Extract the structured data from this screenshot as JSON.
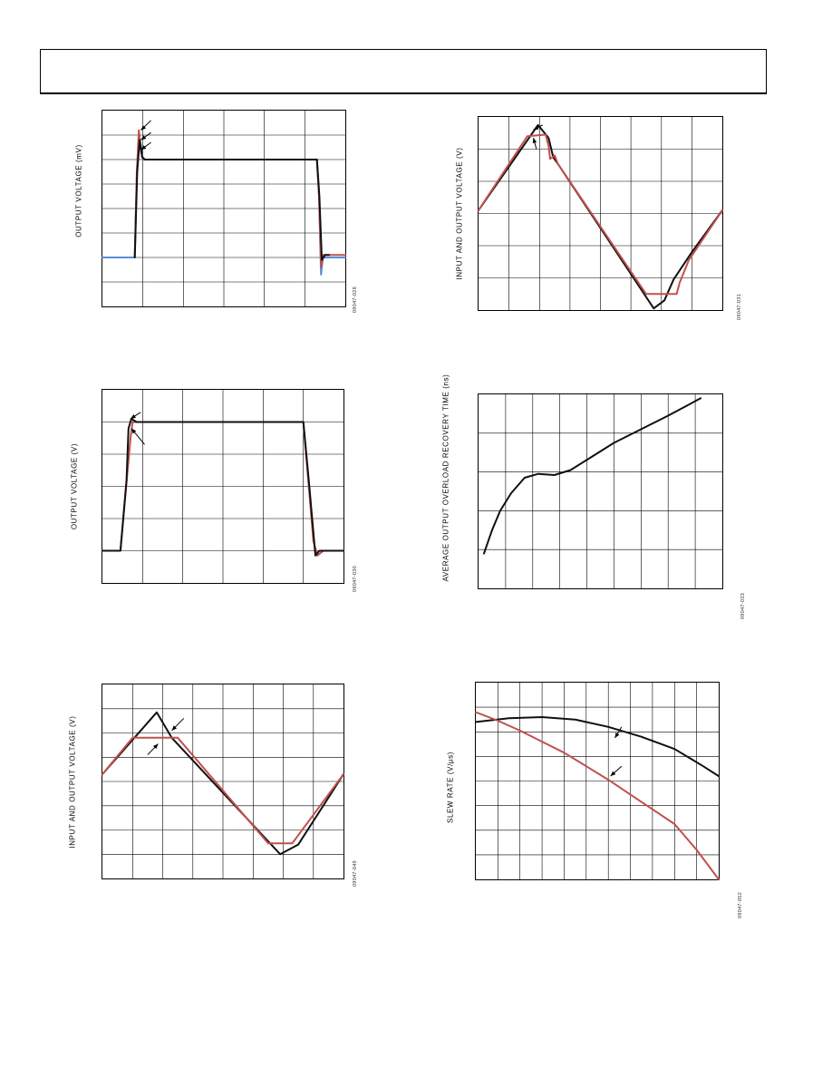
{
  "page": {
    "header": ""
  },
  "colors": {
    "black": "#111111",
    "red": "#c0504d",
    "blue": "#5b8dd9",
    "grid": "#000000"
  },
  "charts": [
    {
      "id": "c1",
      "ylabel": "OUTPUT VOLTAGE (mV)",
      "figid": "09047-028",
      "chart_data": {
        "type": "line",
        "xlim": [
          0,
          6
        ],
        "ylim": [
          0,
          8
        ],
        "grid": {
          "x": 6,
          "y": 8
        },
        "series": [
          {
            "color": "blue",
            "points": [
              [
                0,
                2
              ],
              [
                0.8,
                2
              ],
              [
                0.85,
                5.5
              ],
              [
                0.9,
                7
              ],
              [
                0.95,
                6.6
              ],
              [
                1,
                6
              ],
              [
                5.3,
                6
              ],
              [
                5.35,
                4.5
              ],
              [
                5.4,
                1.3
              ],
              [
                5.45,
                2
              ],
              [
                6,
                2
              ]
            ]
          },
          {
            "color": "red",
            "points": [
              [
                0.8,
                2
              ],
              [
                0.85,
                5.5
              ],
              [
                0.9,
                7.2
              ],
              [
                0.95,
                6.4
              ],
              [
                1,
                6
              ],
              [
                5.3,
                6
              ],
              [
                5.35,
                4.5
              ],
              [
                5.4,
                1.6
              ],
              [
                5.45,
                2.1
              ],
              [
                6,
                2.1
              ]
            ]
          },
          {
            "color": "black",
            "points": [
              [
                0.8,
                2
              ],
              [
                0.86,
                5.5
              ],
              [
                0.92,
                6.8
              ],
              [
                0.98,
                6.1
              ],
              [
                1.05,
                6
              ],
              [
                5.3,
                6
              ],
              [
                5.36,
                4.5
              ],
              [
                5.42,
                1.9
              ],
              [
                5.5,
                2.1
              ],
              [
                5.6,
                2.1
              ]
            ]
          }
        ],
        "arrows": [
          [
            [
              1.2,
              7.6
            ],
            [
              0.95,
              7.2
            ]
          ],
          [
            [
              1.2,
              7.1
            ],
            [
              0.95,
              6.8
            ]
          ],
          [
            [
              1.2,
              6.7
            ],
            [
              0.95,
              6.4
            ]
          ]
        ]
      }
    },
    {
      "id": "c2",
      "ylabel": "INPUT AND OUTPUT VOLTAGE (V)",
      "figid": "09047-031",
      "chart_data": {
        "type": "line",
        "xlim": [
          0,
          8
        ],
        "ylim": [
          0,
          6
        ],
        "grid": {
          "x": 8,
          "y": 6
        },
        "series": [
          {
            "color": "black",
            "points": [
              [
                0,
                3.1
              ],
              [
                1.95,
                5.75
              ],
              [
                2.3,
                5.35
              ],
              [
                2.45,
                4.75
              ],
              [
                2.6,
                4.55
              ],
              [
                5.75,
                0.05
              ],
              [
                6.1,
                0.3
              ],
              [
                6.4,
                0.95
              ],
              [
                7,
                1.8
              ],
              [
                8,
                3.1
              ]
            ]
          },
          {
            "color": "red",
            "points": [
              [
                0,
                3.1
              ],
              [
                1.6,
                5.4
              ],
              [
                2.2,
                5.45
              ],
              [
                2.3,
                5.1
              ],
              [
                2.35,
                4.7
              ],
              [
                2.5,
                4.8
              ],
              [
                2.6,
                4.55
              ],
              [
                5.5,
                0.5
              ],
              [
                6.5,
                0.5
              ],
              [
                6.6,
                0.85
              ],
              [
                6.9,
                1.55
              ],
              [
                8,
                3.1
              ]
            ]
          }
        ],
        "arrows": [
          [
            [
              2.1,
              5.75
            ],
            [
              1.8,
              5.6
            ]
          ],
          [
            [
              1.9,
              5.0
            ],
            [
              1.8,
              5.35
            ]
          ]
        ]
      }
    },
    {
      "id": "c3",
      "ylabel": "OUTPUT VOLTAGE (V)",
      "figid": "09047-030",
      "chart_data": {
        "type": "line",
        "xlim": [
          0,
          6
        ],
        "ylim": [
          0,
          6
        ],
        "grid": {
          "x": 6,
          "y": 6
        },
        "series": [
          {
            "color": "red",
            "points": [
              [
                0,
                1
              ],
              [
                0.45,
                1
              ],
              [
                0.7,
                4.5
              ],
              [
                0.75,
                5
              ],
              [
                0.85,
                5
              ],
              [
                5,
                5
              ],
              [
                5.25,
                1.3
              ],
              [
                5.35,
                0.85
              ],
              [
                5.5,
                1
              ],
              [
                6,
                1
              ]
            ]
          },
          {
            "color": "black",
            "points": [
              [
                0,
                1
              ],
              [
                0.45,
                1
              ],
              [
                0.6,
                3.2
              ],
              [
                0.65,
                4.8
              ],
              [
                0.72,
                5.1
              ],
              [
                0.85,
                5
              ],
              [
                5,
                5
              ],
              [
                5.15,
                3
              ],
              [
                5.3,
                0.85
              ],
              [
                5.4,
                1
              ],
              [
                6,
                1
              ]
            ]
          }
        ],
        "arrows": [
          [
            [
              0.95,
              5.3
            ],
            [
              0.7,
              5.1
            ]
          ],
          [
            [
              1.05,
              4.3
            ],
            [
              0.72,
              4.8
            ]
          ]
        ]
      }
    },
    {
      "id": "c4",
      "ylabel": "AVERAGE OUTPUT OVERLOAD RECOVERY TIME (ns)",
      "figid": "09047-033",
      "chart_data": {
        "type": "line",
        "xlim": [
          0,
          9
        ],
        "ylim": [
          0,
          5
        ],
        "grid": {
          "x": 9,
          "y": 5
        },
        "series": [
          {
            "color": "black",
            "points": [
              [
                0.2,
                0.9
              ],
              [
                0.5,
                1.5
              ],
              [
                0.8,
                2
              ],
              [
                1.2,
                2.45
              ],
              [
                1.7,
                2.85
              ],
              [
                2.2,
                2.95
              ],
              [
                2.8,
                2.92
              ],
              [
                3.4,
                3.05
              ],
              [
                4.2,
                3.4
              ],
              [
                5,
                3.75
              ],
              [
                6,
                4.1
              ],
              [
                7,
                4.45
              ],
              [
                8.2,
                4.9
              ]
            ]
          }
        ]
      }
    },
    {
      "id": "c5",
      "ylabel": "INPUT AND OUTPUT VOLTAGE (V)",
      "figid": "09047-049",
      "chart_data": {
        "type": "line",
        "xlim": [
          0,
          8
        ],
        "ylim": [
          0,
          8
        ],
        "grid": {
          "x": 8,
          "y": 8
        },
        "series": [
          {
            "color": "black",
            "points": [
              [
                0,
                4.3
              ],
              [
                1.8,
                6.85
              ],
              [
                2.3,
                5.8
              ],
              [
                5.9,
                1.0
              ],
              [
                6.5,
                1.4
              ],
              [
                8,
                4.3
              ]
            ]
          },
          {
            "color": "red",
            "points": [
              [
                0,
                4.3
              ],
              [
                1.0,
                5.8
              ],
              [
                2.5,
                5.8
              ],
              [
                5.5,
                1.45
              ],
              [
                6.3,
                1.45
              ],
              [
                8,
                4.3
              ]
            ]
          }
        ],
        "arrows": [
          [
            [
              2.7,
              6.6
            ],
            [
              2.3,
              6.1
            ]
          ],
          [
            [
              1.5,
              5.1
            ],
            [
              1.85,
              5.55
            ]
          ]
        ]
      }
    },
    {
      "id": "c6",
      "ylabel": "SLEW RATE (V/µs)",
      "figid": "09047-052",
      "chart_data": {
        "type": "line",
        "xlim": [
          0,
          11
        ],
        "ylim": [
          0,
          8
        ],
        "grid": {
          "x": 11,
          "y": 8
        },
        "series": [
          {
            "color": "black",
            "points": [
              [
                0,
                6.4
              ],
              [
                1.5,
                6.55
              ],
              [
                3,
                6.6
              ],
              [
                4.5,
                6.5
              ],
              [
                6,
                6.2
              ],
              [
                7.5,
                5.8
              ],
              [
                9,
                5.3
              ],
              [
                10.3,
                4.6
              ],
              [
                11,
                4.2
              ]
            ]
          },
          {
            "color": "red",
            "points": [
              [
                0,
                6.8
              ],
              [
                1,
                6.45
              ],
              [
                2,
                6.05
              ],
              [
                3,
                5.6
              ],
              [
                4,
                5.15
              ],
              [
                5,
                4.6
              ],
              [
                6,
                4.05
              ],
              [
                7,
                3.45
              ],
              [
                8,
                2.85
              ],
              [
                9,
                2.25
              ],
              [
                10,
                1.2
              ],
              [
                11,
                0
              ]
            ]
          }
        ],
        "arrows": [
          [
            [
              6.6,
              6.2
            ],
            [
              6.3,
              5.75
            ]
          ],
          [
            [
              6.6,
              4.6
            ],
            [
              6.1,
              4.2
            ]
          ]
        ]
      }
    }
  ]
}
